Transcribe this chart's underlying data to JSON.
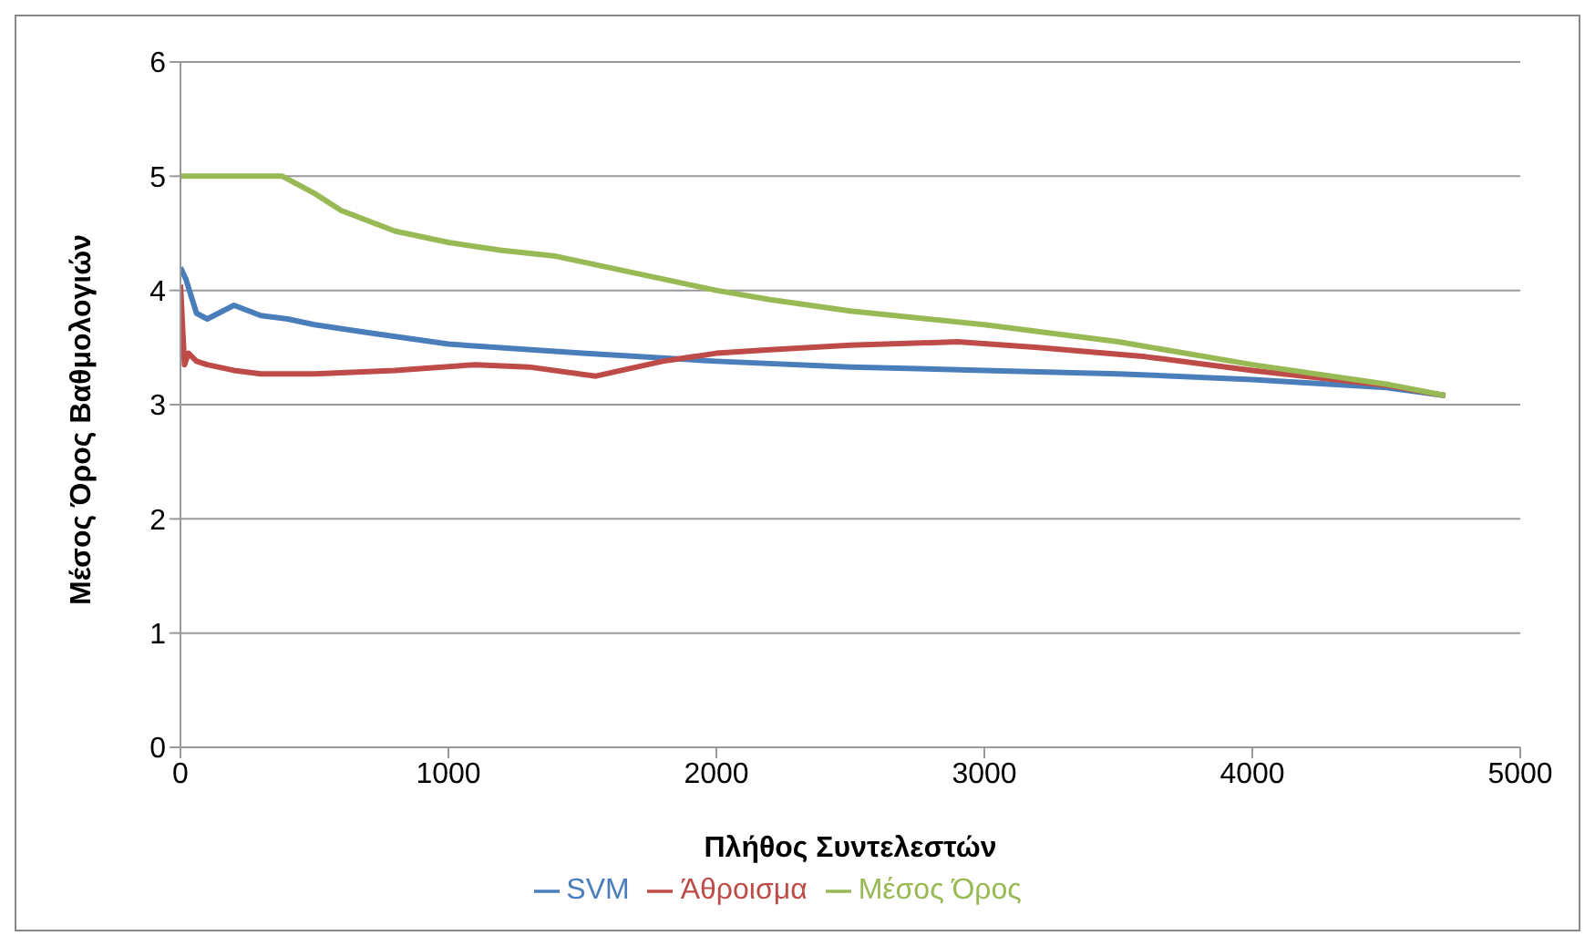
{
  "chart_data": {
    "type": "line",
    "xlabel": "Πλήθος Συντελεστών",
    "ylabel": "Μέσος Όρος Βαθμολογιών",
    "xlim": [
      0,
      5000
    ],
    "xticks": [
      0,
      1000,
      2000,
      3000,
      4000,
      5000
    ],
    "ylim": [
      0,
      6
    ],
    "yticks": [
      0,
      1,
      2,
      3,
      4,
      5,
      6
    ],
    "grid": "y",
    "legend": "bottom",
    "marker": "none",
    "series": [
      {
        "name": "SVM",
        "color": "#4a7ebb",
        "x": [
          0,
          20,
          60,
          100,
          200,
          300,
          400,
          500,
          700,
          1000,
          1500,
          2000,
          2500,
          3000,
          3500,
          4000,
          4500,
          4720
        ],
        "values": [
          4.2,
          4.1,
          3.8,
          3.75,
          3.87,
          3.78,
          3.75,
          3.7,
          3.63,
          3.53,
          3.45,
          3.38,
          3.33,
          3.3,
          3.27,
          3.22,
          3.15,
          3.08
        ]
      },
      {
        "name": "Άθροισμα",
        "color": "#be4b48",
        "x": [
          0,
          15,
          30,
          60,
          100,
          200,
          300,
          500,
          800,
          1100,
          1300,
          1550,
          1800,
          2000,
          2200,
          2500,
          2900,
          3200,
          3600,
          4000,
          4500,
          4720
        ],
        "values": [
          4.05,
          3.35,
          3.45,
          3.38,
          3.35,
          3.3,
          3.27,
          3.27,
          3.3,
          3.35,
          3.33,
          3.25,
          3.38,
          3.45,
          3.48,
          3.52,
          3.55,
          3.5,
          3.42,
          3.3,
          3.17,
          3.08
        ]
      },
      {
        "name": "Μέσος Όρος",
        "color": "#98b954",
        "x": [
          0,
          380,
          500,
          600,
          800,
          1000,
          1200,
          1400,
          1600,
          1800,
          2000,
          2200,
          2500,
          3000,
          3500,
          4000,
          4500,
          4720
        ],
        "values": [
          5,
          5,
          4.85,
          4.7,
          4.52,
          4.42,
          4.35,
          4.3,
          4.2,
          4.1,
          4,
          3.92,
          3.82,
          3.7,
          3.55,
          3.35,
          3.18,
          3.08
        ]
      }
    ]
  }
}
